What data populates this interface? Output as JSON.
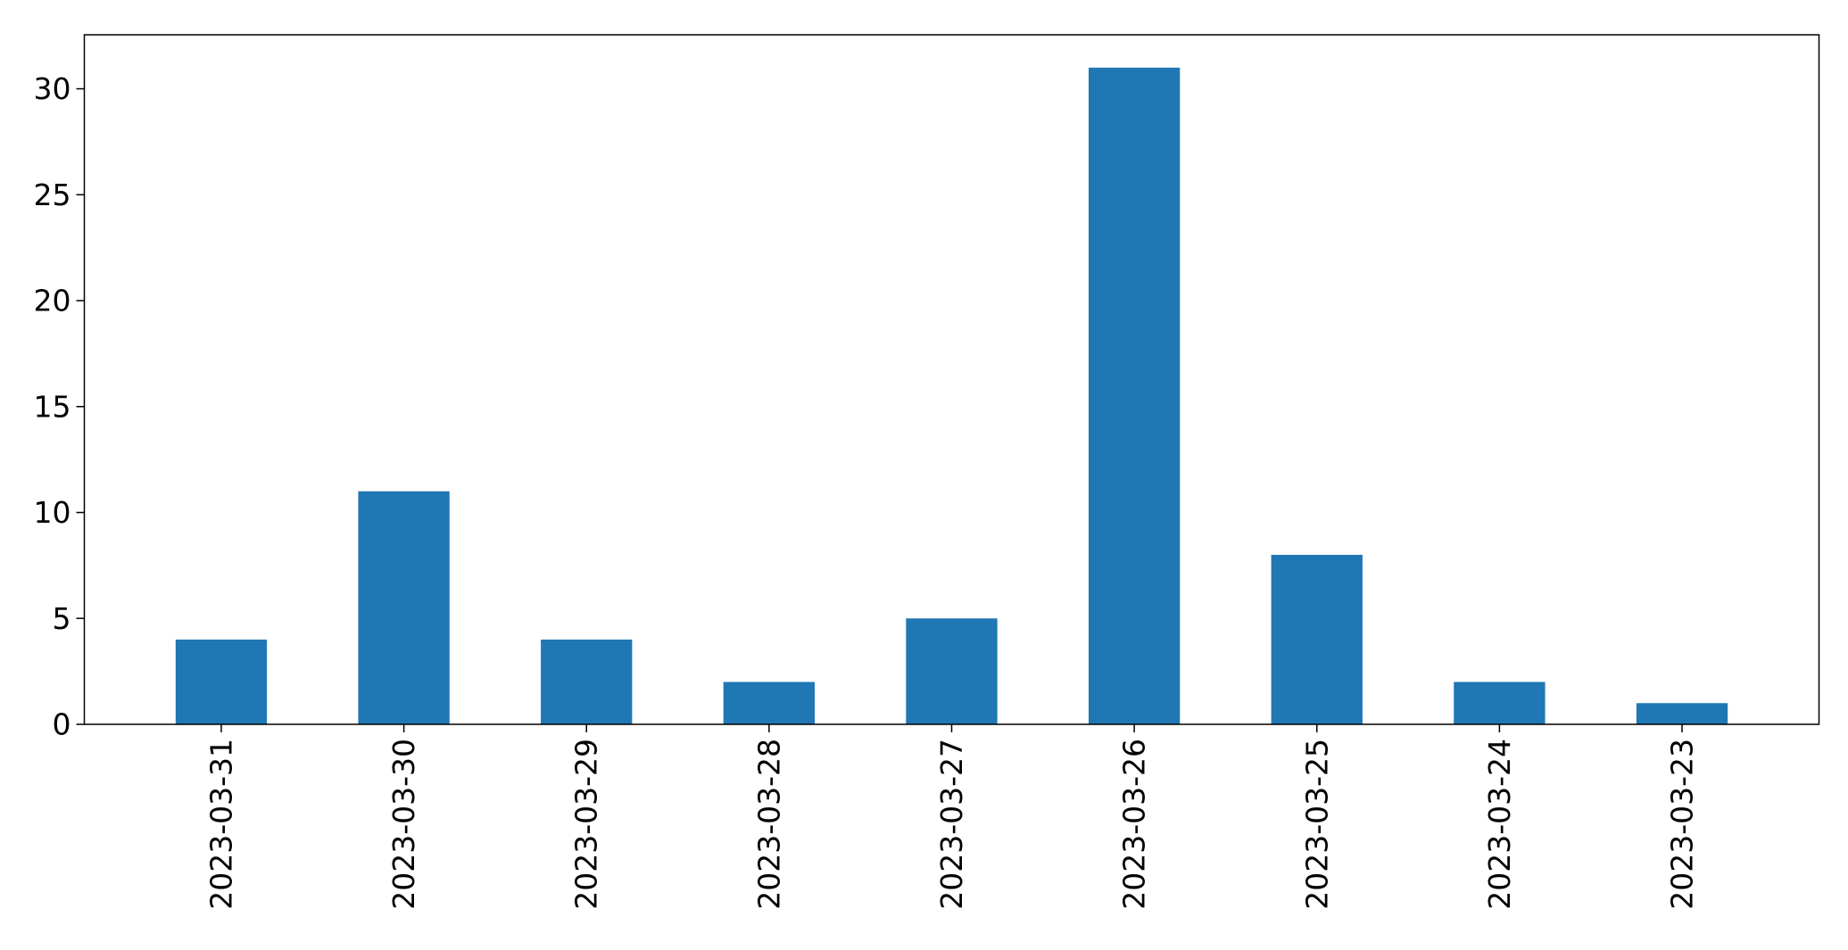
{
  "chart_data": {
    "type": "bar",
    "title": "",
    "xlabel": "",
    "ylabel": "",
    "categories": [
      "2023-03-31",
      "2023-03-30",
      "2023-03-29",
      "2023-03-28",
      "2023-03-27",
      "2023-03-26",
      "2023-03-25",
      "2023-03-24",
      "2023-03-23"
    ],
    "values": [
      4,
      11,
      4,
      2,
      5,
      31,
      8,
      2,
      1
    ],
    "ylim": [
      0,
      32.55
    ],
    "yticks": [
      0,
      5,
      10,
      15,
      20,
      25,
      30
    ],
    "grid": false,
    "legend": "none",
    "bar_color": "#1f77b4",
    "axis_color": "#000000",
    "background": "#ffffff"
  }
}
